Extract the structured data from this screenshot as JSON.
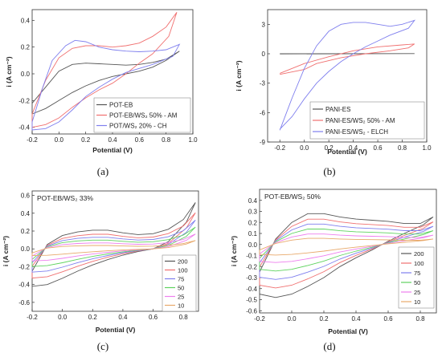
{
  "figure": {
    "captions": [
      "(a)",
      "(b)",
      "(c)",
      "(d)"
    ]
  },
  "chart_data": [
    {
      "type": "line",
      "panel": "a",
      "xlabel": "Potential (V)",
      "ylabel": "i (A cm⁻²)",
      "xlim": [
        -0.2,
        1.0
      ],
      "ylim": [
        -0.45,
        0.48
      ],
      "xticks": [
        "-0.2",
        "0.0",
        "0.2",
        "0.4",
        "0.6",
        "0.8",
        "1.0"
      ],
      "yticks": [
        "-0.4",
        "-0.2",
        "0.0",
        "0.2",
        "0.4"
      ],
      "xtick_values": [
        -0.2,
        0.0,
        0.2,
        0.4,
        0.6,
        0.8,
        1.0
      ],
      "ytick_values": [
        -0.4,
        -0.2,
        0.0,
        0.2,
        0.4
      ],
      "legend_position": "bottom-right",
      "series": [
        {
          "name": "POT-EB",
          "color": "#555555",
          "points": [
            [
              -0.2,
              -0.22
            ],
            [
              -0.1,
              -0.1
            ],
            [
              0.0,
              0.02
            ],
            [
              0.1,
              0.07
            ],
            [
              0.2,
              0.08
            ],
            [
              0.3,
              0.075
            ],
            [
              0.4,
              0.07
            ],
            [
              0.5,
              0.065
            ],
            [
              0.6,
              0.07
            ],
            [
              0.7,
              0.085
            ],
            [
              0.8,
              0.11
            ],
            [
              0.9,
              0.17
            ],
            [
              0.8,
              0.1
            ],
            [
              0.7,
              0.05
            ],
            [
              0.6,
              0.02
            ],
            [
              0.5,
              0.0
            ],
            [
              0.4,
              -0.02
            ],
            [
              0.3,
              -0.05
            ],
            [
              0.2,
              -0.09
            ],
            [
              0.1,
              -0.14
            ],
            [
              0.0,
              -0.2
            ],
            [
              -0.1,
              -0.26
            ],
            [
              -0.2,
              -0.3
            ],
            [
              -0.2,
              -0.22
            ]
          ]
        },
        {
          "name": "POT-EB/WS₂ 50% - AM",
          "color": "#f07070",
          "points": [
            [
              -0.2,
              -0.3
            ],
            [
              -0.1,
              -0.05
            ],
            [
              0.0,
              0.12
            ],
            [
              0.1,
              0.19
            ],
            [
              0.2,
              0.21
            ],
            [
              0.3,
              0.21
            ],
            [
              0.4,
              0.2
            ],
            [
              0.5,
              0.21
            ],
            [
              0.6,
              0.23
            ],
            [
              0.7,
              0.28
            ],
            [
              0.8,
              0.35
            ],
            [
              0.88,
              0.46
            ],
            [
              0.82,
              0.28
            ],
            [
              0.7,
              0.15
            ],
            [
              0.6,
              0.08
            ],
            [
              0.5,
              0.0
            ],
            [
              0.4,
              -0.07
            ],
            [
              0.3,
              -0.12
            ],
            [
              0.2,
              -0.18
            ],
            [
              0.1,
              -0.25
            ],
            [
              0.0,
              -0.33
            ],
            [
              -0.1,
              -0.38
            ],
            [
              -0.2,
              -0.4
            ],
            [
              -0.2,
              -0.3
            ]
          ]
        },
        {
          "name": "POT/WS₂ 20% - CH",
          "color": "#7f7fee",
          "points": [
            [
              -0.2,
              -0.36
            ],
            [
              -0.12,
              -0.1
            ],
            [
              -0.05,
              0.1
            ],
            [
              0.05,
              0.21
            ],
            [
              0.12,
              0.25
            ],
            [
              0.2,
              0.24
            ],
            [
              0.3,
              0.2
            ],
            [
              0.4,
              0.18
            ],
            [
              0.5,
              0.17
            ],
            [
              0.6,
              0.165
            ],
            [
              0.7,
              0.17
            ],
            [
              0.8,
              0.18
            ],
            [
              0.9,
              0.22
            ],
            [
              0.85,
              0.13
            ],
            [
              0.7,
              0.07
            ],
            [
              0.6,
              0.04
            ],
            [
              0.5,
              0.01
            ],
            [
              0.4,
              -0.04
            ],
            [
              0.3,
              -0.1
            ],
            [
              0.2,
              -0.17
            ],
            [
              0.1,
              -0.27
            ],
            [
              0.0,
              -0.36
            ],
            [
              -0.1,
              -0.41
            ],
            [
              -0.2,
              -0.42
            ],
            [
              -0.2,
              -0.36
            ]
          ]
        }
      ]
    },
    {
      "type": "line",
      "panel": "b",
      "xlabel": "Potential (V)",
      "ylabel": "i (A cm⁻²)",
      "xlim": [
        -0.3,
        1.0
      ],
      "ylim": [
        -9,
        4.5
      ],
      "xticks": [
        "-0.2",
        "0.0",
        "0.2",
        "0.4",
        "0.6",
        "0.8",
        "1.0"
      ],
      "yticks": [
        "3",
        "0",
        "-3",
        "-6",
        "-9"
      ],
      "xtick_values": [
        -0.2,
        0.0,
        0.2,
        0.4,
        0.6,
        0.8,
        1.0
      ],
      "ytick_values": [
        3,
        0,
        -3,
        -6,
        -9
      ],
      "legend_position": "bottom-right",
      "series": [
        {
          "name": "PANI-ES",
          "color": "#555555",
          "points": [
            [
              -0.2,
              0.0
            ],
            [
              0.9,
              0.02
            ],
            [
              -0.2,
              -0.02
            ]
          ]
        },
        {
          "name": "PANI-ES/WS₂ 50% - AM",
          "color": "#f07070",
          "points": [
            [
              -0.2,
              -2.0
            ],
            [
              0.0,
              -1.0
            ],
            [
              0.2,
              -0.3
            ],
            [
              0.4,
              0.3
            ],
            [
              0.6,
              0.7
            ],
            [
              0.8,
              0.9
            ],
            [
              0.9,
              1.0
            ],
            [
              0.85,
              0.6
            ],
            [
              0.7,
              0.3
            ],
            [
              0.5,
              0.0
            ],
            [
              0.3,
              -0.4
            ],
            [
              0.1,
              -1.0
            ],
            [
              0.0,
              -1.6
            ],
            [
              -0.2,
              -2.1
            ]
          ]
        },
        {
          "name": "PANI-ES/WS₂ - ELCH",
          "color": "#7f7fee",
          "points": [
            [
              -0.2,
              -7.8
            ],
            [
              -0.1,
              -4.5
            ],
            [
              0.0,
              -1.5
            ],
            [
              0.1,
              0.8
            ],
            [
              0.2,
              2.3
            ],
            [
              0.3,
              3.0
            ],
            [
              0.4,
              3.2
            ],
            [
              0.5,
              3.2
            ],
            [
              0.6,
              3.0
            ],
            [
              0.7,
              2.8
            ],
            [
              0.8,
              3.0
            ],
            [
              0.9,
              3.4
            ],
            [
              0.85,
              2.6
            ],
            [
              0.7,
              1.9
            ],
            [
              0.6,
              1.3
            ],
            [
              0.5,
              0.7
            ],
            [
              0.4,
              0.0
            ],
            [
              0.3,
              -0.8
            ],
            [
              0.2,
              -1.8
            ],
            [
              0.1,
              -3.0
            ],
            [
              0.0,
              -4.6
            ],
            [
              -0.1,
              -6.4
            ],
            [
              -0.2,
              -7.7
            ]
          ]
        }
      ]
    },
    {
      "type": "line",
      "panel": "c",
      "title": "POT-EB/WS₂ 33%",
      "xlabel": "Potential (V)",
      "ylabel": "i (A cm⁻²)",
      "xlim": [
        -0.2,
        0.9
      ],
      "ylim": [
        -0.7,
        0.65
      ],
      "xticks": [
        "-0.2",
        "0.0",
        "0.2",
        "0.4",
        "0.6",
        "0.8"
      ],
      "yticks": [
        "0.6",
        "0.4",
        "0.2",
        "0.0",
        "-0.2",
        "-0.4",
        "-0.6"
      ],
      "xtick_values": [
        -0.2,
        0.0,
        0.2,
        0.4,
        0.6,
        0.8
      ],
      "ytick_values": [
        0.6,
        0.4,
        0.2,
        0.0,
        -0.2,
        -0.4,
        -0.6
      ],
      "legend_position": "bottom-right",
      "series": [
        {
          "name": "200",
          "color": "#555555",
          "scale": 1.0
        },
        {
          "name": "100",
          "color": "#f07070",
          "scale": 0.78
        },
        {
          "name": "75",
          "color": "#7f7fee",
          "scale": 0.62
        },
        {
          "name": "50",
          "color": "#5fd35f",
          "scale": 0.47
        },
        {
          "name": "25",
          "color": "#ee7fee",
          "scale": 0.32
        },
        {
          "name": "10",
          "color": "#e8a96b",
          "scale": 0.18
        }
      ],
      "base_loop": [
        [
          -0.2,
          -0.25
        ],
        [
          -0.1,
          0.05
        ],
        [
          0.0,
          0.15
        ],
        [
          0.1,
          0.19
        ],
        [
          0.2,
          0.21
        ],
        [
          0.3,
          0.21
        ],
        [
          0.4,
          0.18
        ],
        [
          0.5,
          0.16
        ],
        [
          0.6,
          0.17
        ],
        [
          0.7,
          0.22
        ],
        [
          0.8,
          0.33
        ],
        [
          0.88,
          0.52
        ],
        [
          0.82,
          0.3
        ],
        [
          0.7,
          0.08
        ],
        [
          0.6,
          0.0
        ],
        [
          0.5,
          -0.03
        ],
        [
          0.4,
          -0.07
        ],
        [
          0.3,
          -0.12
        ],
        [
          0.2,
          -0.18
        ],
        [
          0.1,
          -0.25
        ],
        [
          0.0,
          -0.33
        ],
        [
          -0.1,
          -0.4
        ],
        [
          -0.2,
          -0.42
        ],
        [
          -0.2,
          -0.25
        ]
      ]
    },
    {
      "type": "line",
      "panel": "d",
      "title": "POT-EB/WS₂ 50%",
      "xlabel": "Potential (V)",
      "ylabel": "i (A cm⁻²)",
      "xlim": [
        -0.2,
        0.9
      ],
      "ylim": [
        -0.62,
        0.5
      ],
      "xticks": [
        "-0.2",
        "0.0",
        "0.2",
        "0.4",
        "0.6",
        "0.8"
      ],
      "yticks": [
        "0.4",
        "0.3",
        "0.2",
        "0.1",
        "0.0",
        "-0.1",
        "-0.2",
        "-0.3",
        "-0.4",
        "-0.5",
        "-0.6"
      ],
      "xtick_values": [
        -0.2,
        0.0,
        0.2,
        0.4,
        0.6,
        0.8
      ],
      "ytick_values": [
        0.4,
        0.3,
        0.2,
        0.1,
        0.0,
        -0.1,
        -0.2,
        -0.3,
        -0.4,
        -0.5,
        -0.6
      ],
      "legend_position": "bottom-right",
      "series": [
        {
          "name": "200",
          "color": "#555555",
          "scale": 1.0
        },
        {
          "name": "100",
          "color": "#f07070",
          "scale": 0.82
        },
        {
          "name": "75",
          "color": "#7f7fee",
          "scale": 0.66
        },
        {
          "name": "50",
          "color": "#5fd35f",
          "scale": 0.5
        },
        {
          "name": "25",
          "color": "#ee7fee",
          "scale": 0.34
        },
        {
          "name": "10",
          "color": "#e8a96b",
          "scale": 0.2
        }
      ],
      "base_loop": [
        [
          -0.2,
          -0.25
        ],
        [
          -0.1,
          0.05
        ],
        [
          0.0,
          0.2
        ],
        [
          0.1,
          0.28
        ],
        [
          0.2,
          0.28
        ],
        [
          0.3,
          0.25
        ],
        [
          0.4,
          0.23
        ],
        [
          0.5,
          0.22
        ],
        [
          0.6,
          0.21
        ],
        [
          0.7,
          0.19
        ],
        [
          0.8,
          0.19
        ],
        [
          0.88,
          0.25
        ],
        [
          0.82,
          0.18
        ],
        [
          0.7,
          0.1
        ],
        [
          0.6,
          0.03
        ],
        [
          0.5,
          -0.05
        ],
        [
          0.4,
          -0.12
        ],
        [
          0.3,
          -0.2
        ],
        [
          0.2,
          -0.3
        ],
        [
          0.1,
          -0.38
        ],
        [
          0.0,
          -0.45
        ],
        [
          -0.1,
          -0.48
        ],
        [
          -0.2,
          -0.45
        ],
        [
          -0.2,
          -0.25
        ]
      ]
    }
  ]
}
